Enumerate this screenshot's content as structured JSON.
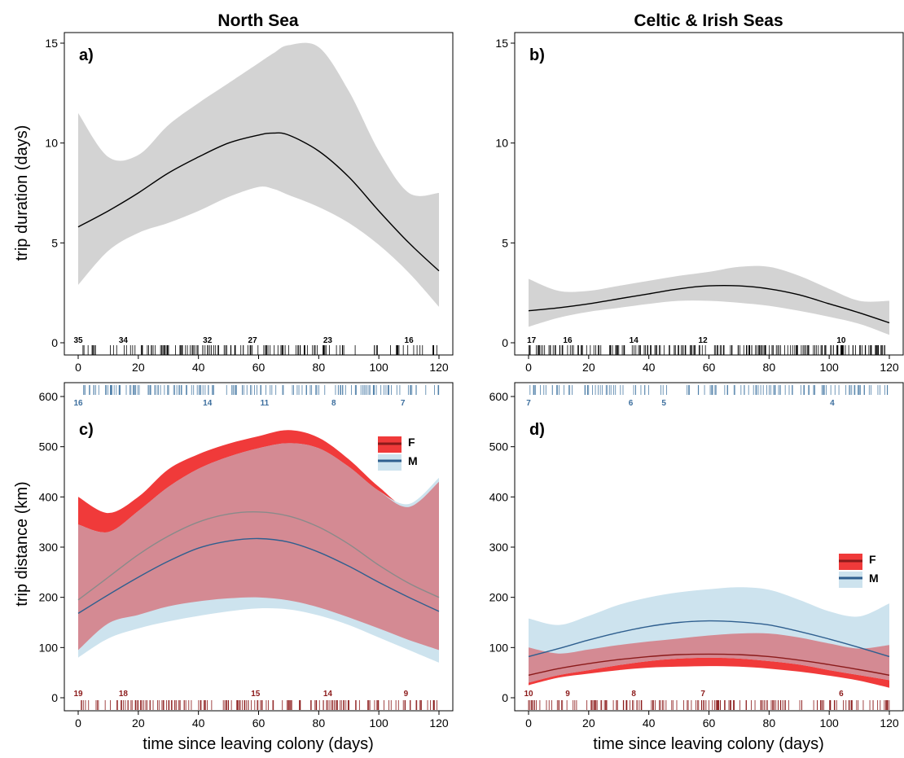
{
  "figure": {
    "titles": [
      "North Sea",
      "Celtic & Irish Seas"
    ],
    "ylabel_top": "trip duration (days)",
    "ylabel_bottom": "trip distance (km)",
    "xlabel": "time since leaving colony (days)"
  },
  "colors": {
    "ci_gray": "#d3d3d3",
    "line": "#000000",
    "female_ci": "#f03a3a",
    "female_line": "#8b1a1a",
    "male_ci": "#cde3ee",
    "male_line": "#2f5f8f",
    "overlap": "#d48a93",
    "rug_top": "#000000",
    "rug_male": "#4f7fa8",
    "rug_female": "#8b1a1a",
    "count_male": "#3d6f9e",
    "count_female": "#8b1a1a"
  },
  "chart_data": [
    {
      "id": "a",
      "label": "a)",
      "type": "line",
      "xlim": [
        0,
        120
      ],
      "ylim": [
        0,
        15
      ],
      "xticks": [
        0,
        20,
        40,
        60,
        80,
        100,
        120
      ],
      "yticks": [
        0,
        5,
        10,
        15
      ],
      "series": [
        {
          "x": [
            0,
            10,
            20,
            30,
            40,
            50,
            60,
            65,
            70,
            80,
            90,
            100,
            110,
            120
          ],
          "y": [
            5.8,
            6.6,
            7.5,
            8.5,
            9.3,
            10.0,
            10.4,
            10.5,
            10.4,
            9.6,
            8.3,
            6.6,
            5.0,
            3.6
          ],
          "lower": [
            2.9,
            4.6,
            5.5,
            6.0,
            6.6,
            7.3,
            7.8,
            7.7,
            7.4,
            6.8,
            6.0,
            4.9,
            3.5,
            1.8
          ],
          "upper": [
            11.5,
            9.3,
            9.4,
            10.9,
            12.0,
            13.0,
            14.0,
            14.5,
            14.9,
            14.8,
            12.6,
            9.6,
            7.5,
            7.5
          ]
        }
      ],
      "counts_bottom": [
        {
          "x": 0,
          "text": "35"
        },
        {
          "x": 15,
          "text": "34"
        },
        {
          "x": 43,
          "text": "32"
        },
        {
          "x": 58,
          "text": "27"
        },
        {
          "x": 83,
          "text": "23"
        },
        {
          "x": 110,
          "text": "16"
        }
      ]
    },
    {
      "id": "b",
      "label": "b)",
      "type": "line",
      "xlim": [
        0,
        120
      ],
      "ylim": [
        0,
        15
      ],
      "xticks": [
        0,
        20,
        40,
        60,
        80,
        100,
        120
      ],
      "yticks": [
        0,
        5,
        10,
        15
      ],
      "series": [
        {
          "x": [
            0,
            10,
            20,
            30,
            40,
            50,
            60,
            70,
            80,
            90,
            100,
            110,
            120
          ],
          "y": [
            1.6,
            1.75,
            1.95,
            2.2,
            2.45,
            2.7,
            2.85,
            2.85,
            2.7,
            2.4,
            1.95,
            1.5,
            1.0
          ],
          "lower": [
            0.8,
            1.25,
            1.55,
            1.75,
            1.95,
            2.1,
            2.1,
            2.0,
            1.85,
            1.6,
            1.3,
            0.95,
            0.4
          ],
          "upper": [
            3.2,
            2.6,
            2.6,
            2.85,
            3.1,
            3.35,
            3.55,
            3.8,
            3.8,
            3.35,
            2.7,
            2.1,
            2.1
          ]
        }
      ],
      "counts_bottom": [
        {
          "x": 1,
          "text": "17"
        },
        {
          "x": 13,
          "text": "16"
        },
        {
          "x": 35,
          "text": "14"
        },
        {
          "x": 58,
          "text": "12"
        },
        {
          "x": 104,
          "text": "10"
        }
      ]
    },
    {
      "id": "c",
      "label": "c)",
      "type": "line",
      "xlim": [
        0,
        120
      ],
      "ylim": [
        0,
        600
      ],
      "xticks": [
        0,
        20,
        40,
        60,
        80,
        100,
        120
      ],
      "yticks": [
        0,
        100,
        200,
        300,
        400,
        500,
        600
      ],
      "legend": [
        "F",
        "M"
      ],
      "legend_position": "top-right",
      "series": [
        {
          "name": "F",
          "x": [
            0,
            10,
            20,
            30,
            40,
            50,
            60,
            70,
            80,
            90,
            100,
            110,
            120
          ],
          "y": [
            195,
            240,
            285,
            322,
            350,
            366,
            370,
            362,
            340,
            306,
            264,
            228,
            200
          ],
          "lower": [
            95,
            148,
            165,
            182,
            192,
            198,
            200,
            194,
            180,
            160,
            138,
            115,
            95
          ],
          "upper": [
            400,
            368,
            400,
            455,
            485,
            506,
            521,
            533,
            518,
            475,
            420,
            380,
            430
          ]
        },
        {
          "name": "M",
          "x": [
            0,
            10,
            20,
            30,
            40,
            50,
            60,
            70,
            80,
            90,
            100,
            110,
            120
          ],
          "y": [
            168,
            205,
            240,
            272,
            298,
            312,
            317,
            310,
            290,
            262,
            230,
            200,
            172
          ],
          "lower": [
            80,
            118,
            138,
            152,
            163,
            172,
            178,
            176,
            164,
            145,
            120,
            95,
            70
          ],
          "upper": [
            345,
            330,
            372,
            420,
            456,
            480,
            497,
            507,
            497,
            460,
            412,
            386,
            438
          ]
        }
      ],
      "counts_top": [
        {
          "x": 0,
          "text": "16"
        },
        {
          "x": 43,
          "text": "14"
        },
        {
          "x": 62,
          "text": "11"
        },
        {
          "x": 85,
          "text": "8"
        },
        {
          "x": 108,
          "text": "7"
        }
      ],
      "counts_bottom": [
        {
          "x": 0,
          "text": "19"
        },
        {
          "x": 15,
          "text": "18"
        },
        {
          "x": 59,
          "text": "15"
        },
        {
          "x": 83,
          "text": "14"
        },
        {
          "x": 109,
          "text": "9"
        }
      ]
    },
    {
      "id": "d",
      "label": "d)",
      "type": "line",
      "xlim": [
        0,
        120
      ],
      "ylim": [
        0,
        600
      ],
      "xticks": [
        0,
        20,
        40,
        60,
        80,
        100,
        120
      ],
      "yticks": [
        0,
        100,
        200,
        300,
        400,
        500,
        600
      ],
      "legend": [
        "F",
        "M"
      ],
      "legend_position": "right",
      "series": [
        {
          "name": "F",
          "x": [
            0,
            10,
            20,
            30,
            40,
            50,
            60,
            70,
            80,
            90,
            100,
            110,
            120
          ],
          "y": [
            45,
            58,
            68,
            76,
            82,
            86,
            87,
            86,
            82,
            75,
            66,
            56,
            45
          ],
          "lower": [
            25,
            40,
            48,
            55,
            60,
            62,
            63,
            62,
            58,
            52,
            44,
            34,
            20
          ],
          "upper": [
            100,
            88,
            96,
            105,
            112,
            118,
            124,
            128,
            128,
            120,
            108,
            98,
            105
          ]
        },
        {
          "name": "M",
          "x": [
            0,
            10,
            20,
            30,
            40,
            50,
            60,
            70,
            80,
            90,
            100,
            110,
            120
          ],
          "y": [
            82,
            98,
            115,
            130,
            142,
            150,
            153,
            151,
            145,
            132,
            117,
            100,
            82
          ],
          "lower": [
            30,
            45,
            55,
            65,
            73,
            78,
            80,
            78,
            73,
            66,
            55,
            45,
            35
          ],
          "upper": [
            158,
            145,
            163,
            185,
            200,
            210,
            216,
            220,
            215,
            195,
            172,
            162,
            188
          ]
        }
      ],
      "counts_top": [
        {
          "x": 0,
          "text": "7"
        },
        {
          "x": 34,
          "text": "6"
        },
        {
          "x": 45,
          "text": "5"
        },
        {
          "x": 101,
          "text": "4"
        }
      ],
      "counts_bottom": [
        {
          "x": 0,
          "text": "10"
        },
        {
          "x": 13,
          "text": "9"
        },
        {
          "x": 35,
          "text": "8"
        },
        {
          "x": 58,
          "text": "7"
        },
        {
          "x": 104,
          "text": "6"
        }
      ]
    }
  ]
}
